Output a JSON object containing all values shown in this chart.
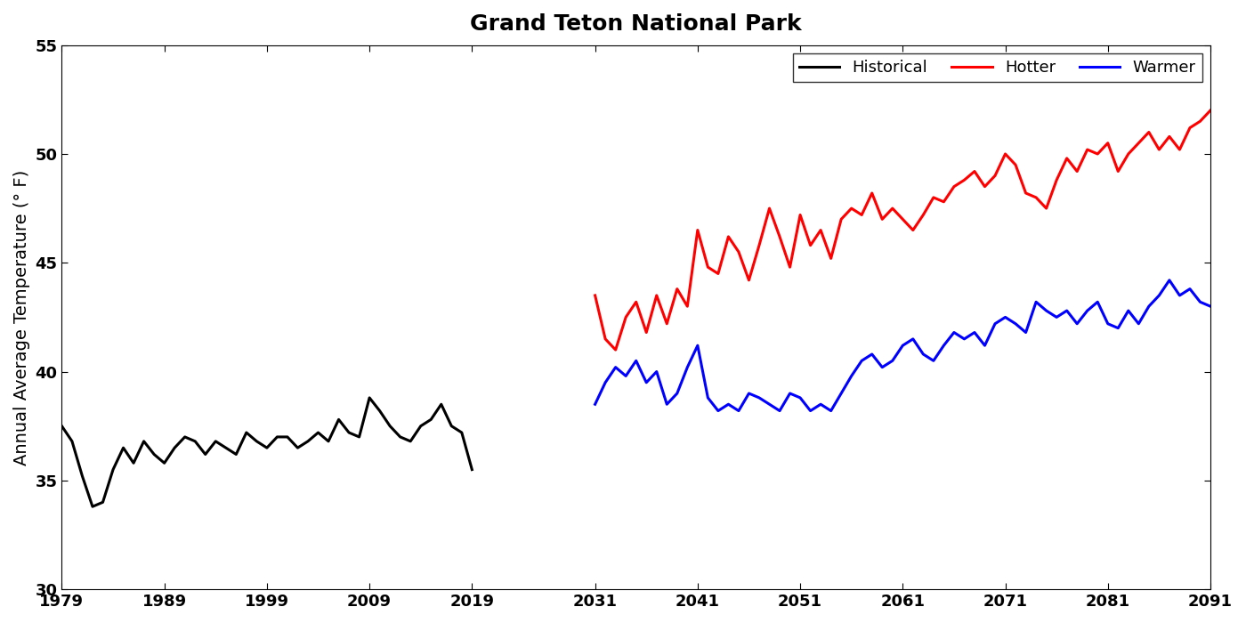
{
  "title": "Grand Teton National Park",
  "ylabel": "Annual Average Temperature (° F)",
  "xlim": [
    1979,
    2091
  ],
  "ylim": [
    30,
    55
  ],
  "xticks": [
    1979,
    1989,
    1999,
    2009,
    2019,
    2031,
    2041,
    2051,
    2061,
    2071,
    2081,
    2091
  ],
  "yticks": [
    30,
    35,
    40,
    45,
    50,
    55
  ],
  "title_fontsize": 18,
  "axis_fontsize": 14,
  "tick_fontsize": 13,
  "line_width": 2.2,
  "historical_color": "#000000",
  "hotter_color": "#ff0000",
  "warmer_color": "#0000ff",
  "historical_years": [
    1979,
    1980,
    1981,
    1982,
    1983,
    1984,
    1985,
    1986,
    1987,
    1988,
    1989,
    1990,
    1991,
    1992,
    1993,
    1994,
    1995,
    1996,
    1997,
    1998,
    1999,
    2000,
    2001,
    2002,
    2003,
    2004,
    2005,
    2006,
    2007,
    2008,
    2009,
    2010,
    2011,
    2012,
    2013,
    2014,
    2015,
    2016,
    2017,
    2018,
    2019
  ],
  "historical_temps": [
    37.5,
    36.8,
    35.2,
    33.8,
    34.0,
    35.5,
    36.5,
    35.8,
    36.8,
    36.2,
    35.8,
    36.5,
    37.0,
    36.8,
    36.2,
    36.8,
    36.5,
    36.2,
    37.2,
    36.8,
    36.5,
    37.0,
    37.0,
    36.5,
    36.8,
    37.2,
    36.8,
    37.8,
    37.2,
    37.0,
    38.8,
    38.2,
    37.5,
    37.0,
    36.8,
    37.5,
    37.8,
    38.5,
    37.5,
    37.2,
    35.5
  ],
  "hotter_years": [
    2031,
    2032,
    2033,
    2034,
    2035,
    2036,
    2037,
    2038,
    2039,
    2040,
    2041,
    2042,
    2043,
    2044,
    2045,
    2046,
    2047,
    2048,
    2049,
    2050,
    2051,
    2052,
    2053,
    2054,
    2055,
    2056,
    2057,
    2058,
    2059,
    2060,
    2061,
    2062,
    2063,
    2064,
    2065,
    2066,
    2067,
    2068,
    2069,
    2070,
    2071,
    2072,
    2073,
    2074,
    2075,
    2076,
    2077,
    2078,
    2079,
    2080,
    2081,
    2082,
    2083,
    2084,
    2085,
    2086,
    2087,
    2088,
    2089,
    2090,
    2091
  ],
  "hotter_temps": [
    43.5,
    41.5,
    41.0,
    42.5,
    43.2,
    41.8,
    43.5,
    42.2,
    43.8,
    43.0,
    46.5,
    44.8,
    44.5,
    46.2,
    45.5,
    44.2,
    45.8,
    47.5,
    46.2,
    44.8,
    47.2,
    45.8,
    46.5,
    45.2,
    47.0,
    47.5,
    47.2,
    48.2,
    47.0,
    47.5,
    47.0,
    46.5,
    47.2,
    48.0,
    47.8,
    48.5,
    48.8,
    49.2,
    48.5,
    49.0,
    50.0,
    49.5,
    48.2,
    48.0,
    47.5,
    48.8,
    49.8,
    49.2,
    50.2,
    50.0,
    50.5,
    49.2,
    50.0,
    50.5,
    51.0,
    50.2,
    50.8,
    50.2,
    51.2,
    51.5,
    52.0
  ],
  "warmer_years": [
    2031,
    2032,
    2033,
    2034,
    2035,
    2036,
    2037,
    2038,
    2039,
    2040,
    2041,
    2042,
    2043,
    2044,
    2045,
    2046,
    2047,
    2048,
    2049,
    2050,
    2051,
    2052,
    2053,
    2054,
    2055,
    2056,
    2057,
    2058,
    2059,
    2060,
    2061,
    2062,
    2063,
    2064,
    2065,
    2066,
    2067,
    2068,
    2069,
    2070,
    2071,
    2072,
    2073,
    2074,
    2075,
    2076,
    2077,
    2078,
    2079,
    2080,
    2081,
    2082,
    2083,
    2084,
    2085,
    2086,
    2087,
    2088,
    2089,
    2090,
    2091
  ],
  "warmer_temps": [
    38.5,
    39.5,
    40.2,
    39.8,
    40.5,
    39.5,
    40.0,
    38.5,
    39.0,
    40.2,
    41.2,
    38.8,
    38.2,
    38.5,
    38.2,
    39.0,
    38.8,
    38.5,
    38.2,
    39.0,
    38.8,
    38.2,
    38.5,
    38.2,
    39.0,
    39.8,
    40.5,
    40.8,
    40.2,
    40.5,
    41.2,
    41.5,
    40.8,
    40.5,
    41.2,
    41.8,
    41.5,
    41.8,
    41.2,
    42.2,
    42.5,
    42.2,
    41.8,
    43.2,
    42.8,
    42.5,
    42.8,
    42.2,
    42.8,
    43.2,
    42.2,
    42.0,
    42.8,
    42.2,
    43.0,
    43.5,
    44.2,
    43.5,
    43.8,
    43.2,
    43.0
  ]
}
